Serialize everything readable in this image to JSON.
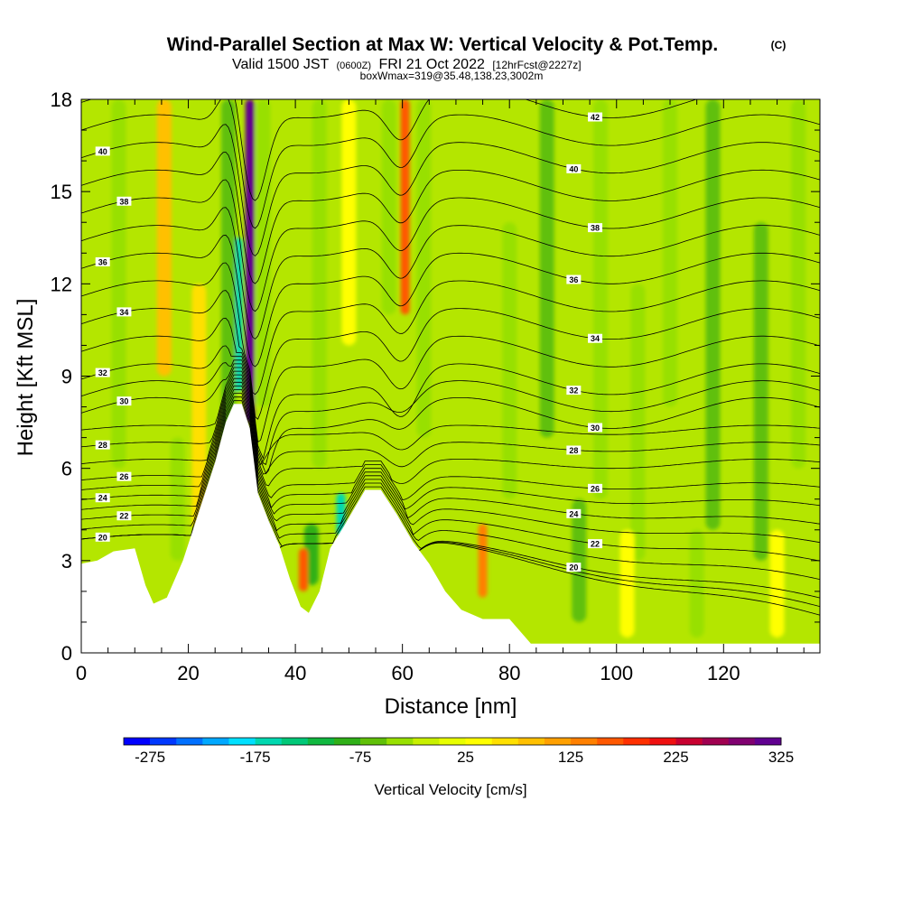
{
  "chart_data": {
    "type": "heatmap",
    "title": {
      "main": "Wind-Parallel Section at Max W: Vertical Velocity & Pot.Temp.",
      "copyright": "(C)",
      "valid_prefix": "Valid 1500 JST",
      "utc": "(0600Z)",
      "date": "FRI 21 Oct 2022",
      "forecast": "[12hrFcst@2227z]",
      "box": "boxWmax=319@35.48,138.23,3002m"
    },
    "xlabel": "Distance [nm]",
    "ylabel": "Height [Kft MSL]",
    "xlim": [
      0,
      138
    ],
    "ylim": [
      0,
      18
    ],
    "x_ticks": [
      0,
      20,
      40,
      60,
      80,
      100,
      120
    ],
    "y_ticks": [
      0,
      3,
      6,
      9,
      12,
      15,
      18
    ],
    "colorbar": {
      "title": "Vertical Velocity [cm/s]",
      "min": -300,
      "max": 325,
      "step": 25,
      "tick_values": [
        -275,
        -175,
        -75,
        25,
        125,
        225,
        325
      ],
      "tick_labels": [
        "-275",
        "-175",
        "-75",
        "25",
        "125",
        "225",
        "325"
      ],
      "colors": [
        "#0000ff",
        "#0038ff",
        "#0070ff",
        "#00a8ff",
        "#00e0ff",
        "#00d8b0",
        "#00c878",
        "#10b840",
        "#30b018",
        "#60c008",
        "#98e000",
        "#c8f000",
        "#e8ff00",
        "#ffff00",
        "#ffe000",
        "#ffc000",
        "#ffa000",
        "#ff8000",
        "#ff5800",
        "#ff3000",
        "#f01010",
        "#c80030",
        "#a00050",
        "#800070",
        "#600090"
      ]
    },
    "series": [
      {
        "name": "Vertical Velocity",
        "units": "cm/s"
      },
      {
        "name": "Pot.Temp."
      }
    ],
    "velocity_features": [
      {
        "x": 31.5,
        "y_range": [
          7.5,
          18
        ],
        "value": 300
      },
      {
        "x": 29.3,
        "y_range": [
          8.5,
          13.5
        ],
        "value": -175
      },
      {
        "x": 27.5,
        "y_range": [
          6,
          18
        ],
        "value": -60
      },
      {
        "x": 34,
        "y_range": [
          8,
          18
        ],
        "value": -50
      },
      {
        "x": 60.5,
        "y_range": [
          11,
          18
        ],
        "value": 150
      },
      {
        "x": 57.5,
        "y_range": [
          11,
          18
        ],
        "value": -40
      },
      {
        "x": 64,
        "y_range": [
          7,
          18
        ],
        "value": -40
      },
      {
        "x": 48.5,
        "y_range": [
          3.8,
          5.2
        ],
        "value": -175
      },
      {
        "x": 43,
        "y_range": [
          2.2,
          4.2
        ],
        "value": -100
      },
      {
        "x": 41.5,
        "y_range": [
          2,
          3.4
        ],
        "value": 150
      },
      {
        "x": 75,
        "y_range": [
          1.8,
          4.2
        ],
        "value": 125
      },
      {
        "x": 7,
        "y_range": [
          6,
          18
        ],
        "value": -40
      },
      {
        "x": 15.5,
        "y_range": [
          9,
          18
        ],
        "value": 80
      },
      {
        "x": 22,
        "y_range": [
          4,
          12
        ],
        "value": 60
      },
      {
        "x": 18,
        "y_range": [
          3,
          7
        ],
        "value": -40
      },
      {
        "x": 44.5,
        "y_range": [
          6,
          18
        ],
        "value": -30
      },
      {
        "x": 50,
        "y_range": [
          10,
          18
        ],
        "value": 40
      },
      {
        "x": 80,
        "y_range": [
          5,
          14
        ],
        "value": -40
      },
      {
        "x": 87,
        "y_range": [
          7,
          18
        ],
        "value": -55
      },
      {
        "x": 97,
        "y_range": [
          5,
          18
        ],
        "value": -50
      },
      {
        "x": 104,
        "y_range": [
          3,
          12
        ],
        "value": -45
      },
      {
        "x": 110,
        "y_range": [
          8,
          18
        ],
        "value": -50
      },
      {
        "x": 118,
        "y_range": [
          4,
          18
        ],
        "value": -60
      },
      {
        "x": 127,
        "y_range": [
          3,
          14
        ],
        "value": -55
      },
      {
        "x": 134,
        "y_range": [
          6,
          18
        ],
        "value": -40
      },
      {
        "x": 93,
        "y_range": [
          1,
          5
        ],
        "value": -55
      },
      {
        "x": 115,
        "y_range": [
          0.5,
          4
        ],
        "value": -50
      },
      {
        "x": 102,
        "y_range": [
          0.5,
          4
        ],
        "value": 30
      },
      {
        "x": 130,
        "y_range": [
          0.5,
          4
        ],
        "value": 40
      }
    ],
    "terrain": [
      [
        0,
        2.9
      ],
      [
        3,
        3.0
      ],
      [
        6,
        3.3
      ],
      [
        10,
        3.4
      ],
      [
        12,
        2.2
      ],
      [
        13.5,
        1.6
      ],
      [
        16,
        1.8
      ],
      [
        19,
        3.0
      ],
      [
        22,
        4.6
      ],
      [
        25,
        6.2
      ],
      [
        27,
        7.5
      ],
      [
        28.5,
        8.1
      ],
      [
        30,
        8.1
      ],
      [
        31.5,
        7.3
      ],
      [
        33,
        5.2
      ],
      [
        35,
        4.3
      ],
      [
        37,
        3.5
      ],
      [
        39,
        2.4
      ],
      [
        41,
        1.5
      ],
      [
        42.5,
        1.3
      ],
      [
        44.5,
        2.0
      ],
      [
        46.5,
        3.4
      ],
      [
        49,
        4.1
      ],
      [
        51,
        4.7
      ],
      [
        53,
        5.3
      ],
      [
        56,
        5.3
      ],
      [
        59,
        4.5
      ],
      [
        62,
        3.6
      ],
      [
        65,
        2.9
      ],
      [
        68,
        2.0
      ],
      [
        71,
        1.4
      ],
      [
        75,
        1.1
      ],
      [
        80,
        1.1
      ],
      [
        84,
        0.3
      ],
      [
        138,
        0.3
      ]
    ],
    "isentropes": [
      {
        "value": 20,
        "label": "20"
      },
      {
        "value": 22,
        "label": "22"
      },
      {
        "value": 24,
        "label": "24"
      },
      {
        "value": 26,
        "label": "26"
      },
      {
        "value": 28,
        "label": "28"
      },
      {
        "value": 30,
        "label": "30"
      },
      {
        "value": 32,
        "label": "32"
      },
      {
        "value": 34,
        "label": "34"
      },
      {
        "value": 36,
        "label": "36"
      },
      {
        "value": 38,
        "label": "38"
      },
      {
        "value": 40,
        "label": "40"
      },
      {
        "value": 42,
        "label": "42"
      }
    ]
  }
}
